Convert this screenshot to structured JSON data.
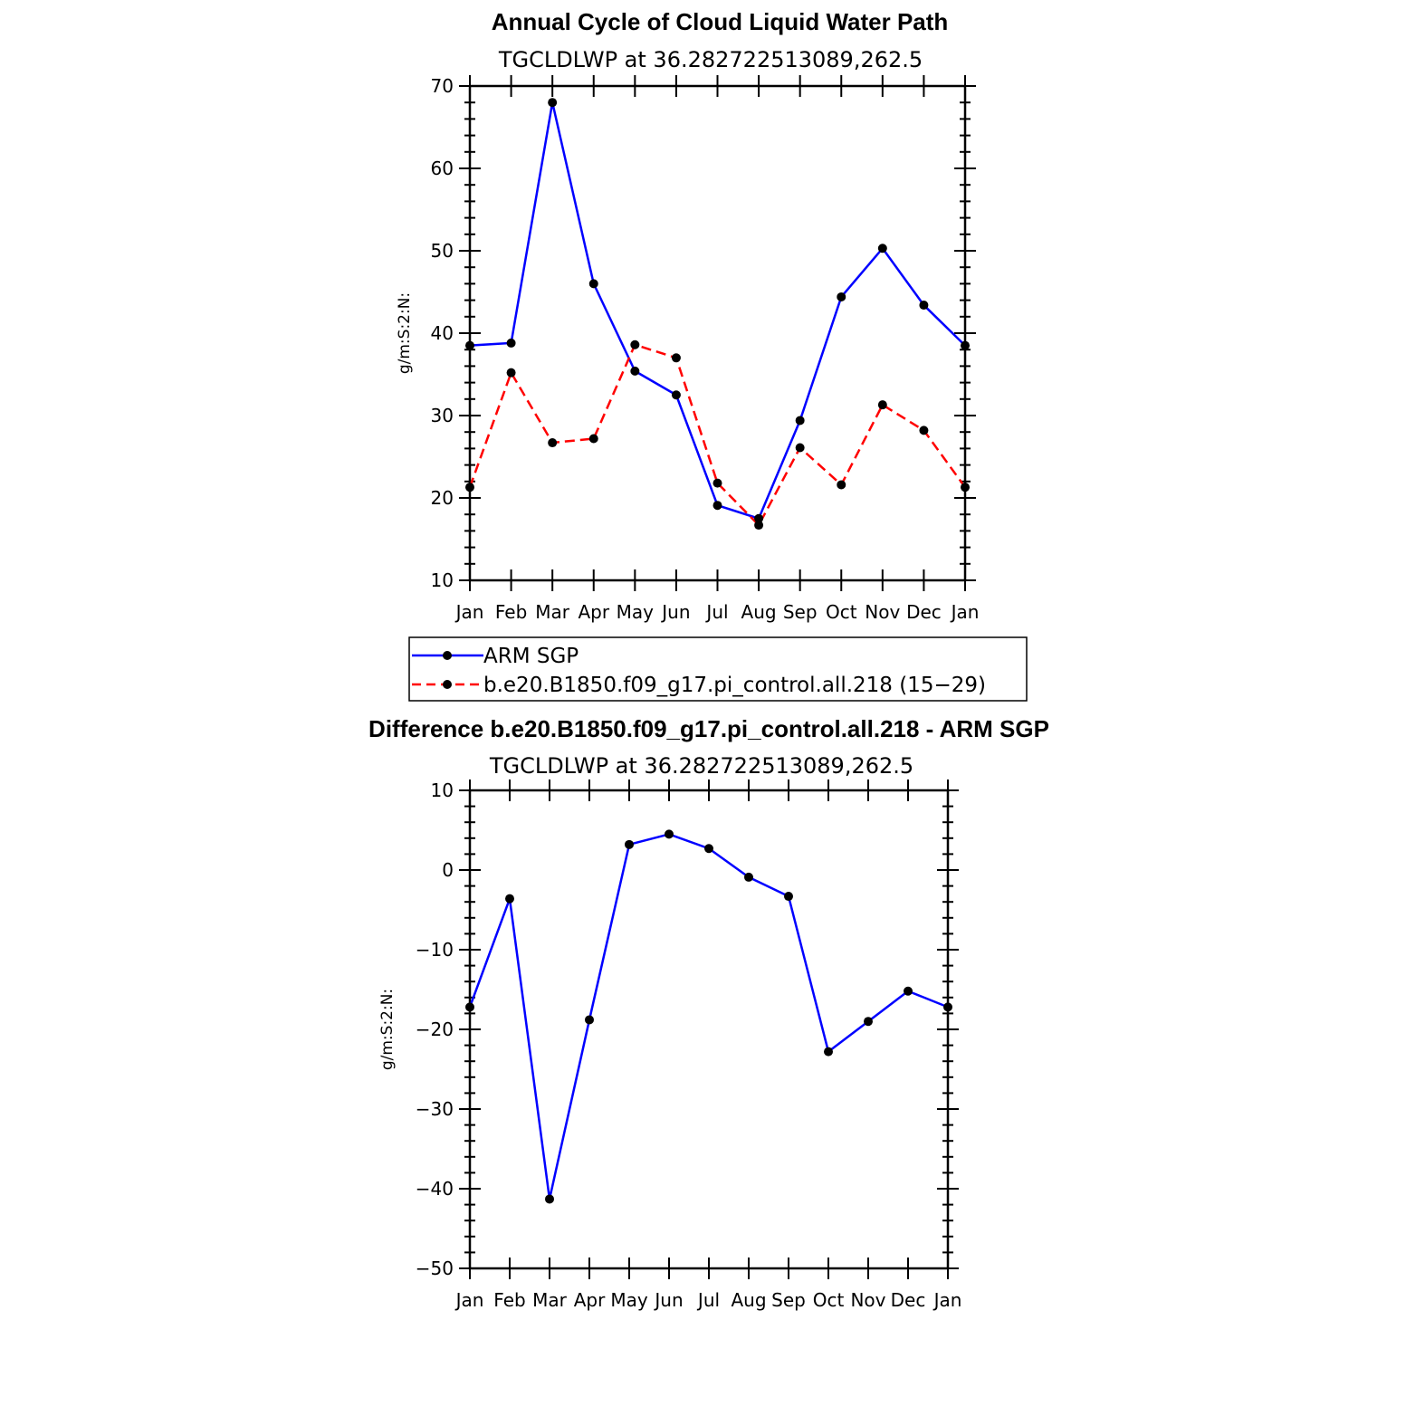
{
  "chart_data": [
    {
      "type": "line",
      "title": "Annual Cycle of Cloud Liquid Water Path",
      "subtitle": "TGCLDLWP  at  36.282722513089,262.5",
      "xlabel": "",
      "ylabel": "g/m:S:2:N:",
      "categories": [
        "Jan",
        "Feb",
        "Mar",
        "Apr",
        "May",
        "Jun",
        "Jul",
        "Aug",
        "Sep",
        "Oct",
        "Nov",
        "Dec",
        "Jan"
      ],
      "ylim": [
        10,
        70
      ],
      "yticks": [
        10,
        20,
        30,
        40,
        50,
        60,
        70
      ],
      "series": [
        {
          "name": "ARM SGP",
          "color": "#0000ff",
          "dash": "solid",
          "values": [
            38.5,
            38.8,
            68.0,
            46.0,
            35.4,
            32.5,
            19.1,
            17.5,
            29.4,
            44.4,
            50.3,
            43.4,
            38.5
          ]
        },
        {
          "name": "b.e20.B1850.f09_g17.pi_control.all.218 (15−29)",
          "color": "#ff0000",
          "dash": "dashed",
          "values": [
            21.3,
            35.2,
            26.7,
            27.2,
            38.6,
            37.0,
            21.8,
            16.7,
            26.1,
            21.6,
            31.3,
            28.2,
            21.3
          ]
        }
      ],
      "legend": "below"
    },
    {
      "type": "line",
      "title": "Difference b.e20.B1850.f09_g17.pi_control.all.218 - ARM SGP",
      "subtitle": "TGCLDLWP  at  36.282722513089,262.5",
      "xlabel": "",
      "ylabel": "g/m:S:2:N:",
      "categories": [
        "Jan",
        "Feb",
        "Mar",
        "Apr",
        "May",
        "Jun",
        "Jul",
        "Aug",
        "Sep",
        "Oct",
        "Nov",
        "Dec",
        "Jan"
      ],
      "ylim": [
        -50,
        10
      ],
      "yticks": [
        -50,
        -40,
        -30,
        -20,
        -10,
        0,
        10
      ],
      "ytick_labels": [
        "−50",
        "−40",
        "−30",
        "−20",
        "−10",
        "0",
        "10"
      ],
      "series": [
        {
          "color": "#0000ff",
          "dash": "solid",
          "values": [
            -17.2,
            -3.6,
            -41.3,
            -18.8,
            3.2,
            4.5,
            2.7,
            -0.9,
            -3.3,
            -22.8,
            -19.0,
            -15.2,
            -17.2
          ]
        }
      ]
    }
  ]
}
